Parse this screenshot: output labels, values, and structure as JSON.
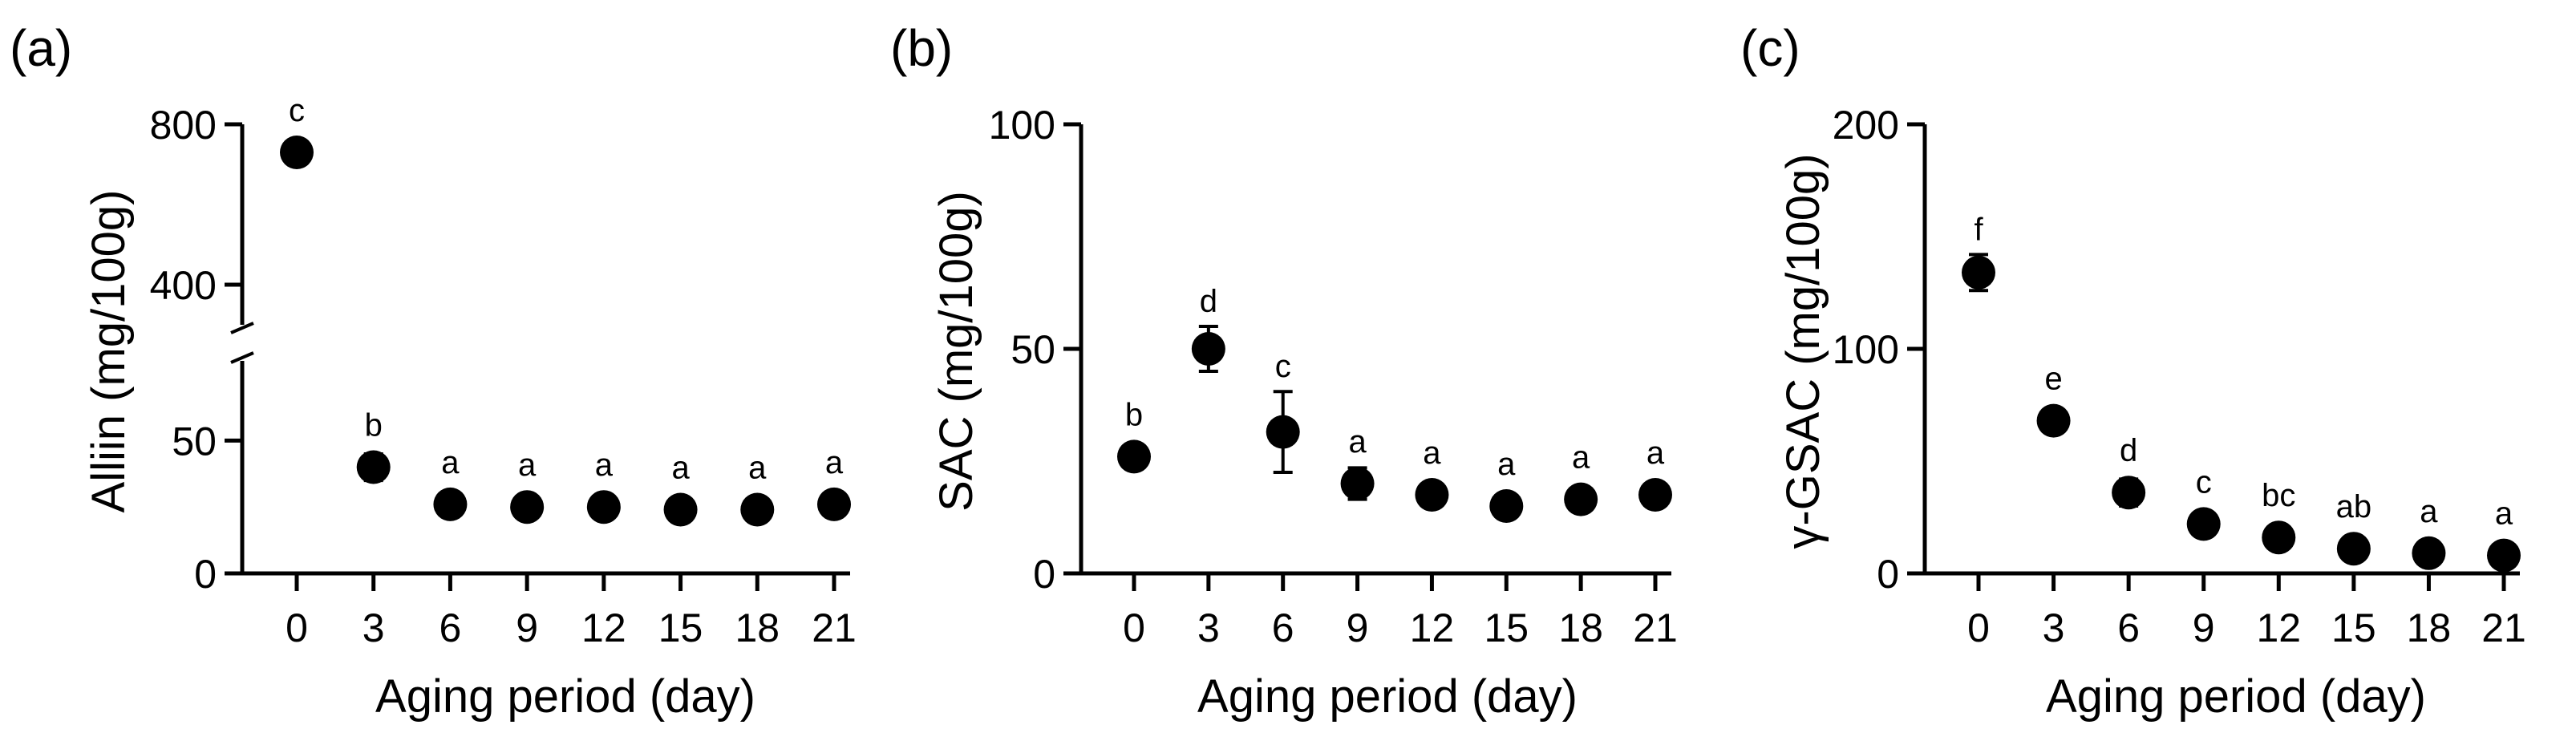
{
  "chart_data": [
    {
      "type": "scatter",
      "panel_label": "(a)",
      "xlabel": "Aging period (day)",
      "ylabel": "Alliin (mg/100g)",
      "x": [
        0,
        3,
        6,
        9,
        12,
        15,
        18,
        21
      ],
      "xticks": [
        "0",
        "3",
        "6",
        "9",
        "12",
        "15",
        "18",
        "21"
      ],
      "series": [
        {
          "name": "Alliin",
          "values": [
            730,
            40,
            26,
            25,
            25,
            24,
            24,
            26
          ],
          "errors": [
            15,
            5,
            2,
            2,
            2,
            2,
            2,
            2
          ],
          "letters": [
            "c",
            "b",
            "a",
            "a",
            "a",
            "a",
            "a",
            "a"
          ]
        }
      ],
      "axis_break": {
        "lower_range": [
          0,
          80
        ],
        "upper_range": [
          300,
          800
        ]
      },
      "yticks": [
        "0",
        "50",
        "400",
        "800"
      ],
      "ytick_values": [
        0,
        50,
        400,
        800
      ]
    },
    {
      "type": "scatter",
      "panel_label": "(b)",
      "xlabel": "Aging period (day)",
      "ylabel": "SAC (mg/100g)",
      "x": [
        0,
        3,
        6,
        9,
        12,
        15,
        18,
        21
      ],
      "xticks": [
        "0",
        "3",
        "6",
        "9",
        "12",
        "15",
        "18",
        "21"
      ],
      "ylim": [
        0,
        100
      ],
      "yticks": [
        "0",
        "50",
        "100"
      ],
      "ytick_values": [
        0,
        50,
        100
      ],
      "series": [
        {
          "name": "SAC",
          "values": [
            26,
            50,
            31.5,
            20,
            17.5,
            15,
            16.5,
            17.5
          ],
          "errors": [
            1.5,
            5,
            9,
            3.5,
            1.5,
            1,
            1,
            1
          ],
          "letters": [
            "b",
            "d",
            "c",
            "a",
            "a",
            "a",
            "a",
            "a"
          ]
        }
      ]
    },
    {
      "type": "scatter",
      "panel_label": "(c)",
      "xlabel": "Aging period (day)",
      "ylabel": "γ-GSAC (mg/100g)",
      "x": [
        0,
        3,
        6,
        9,
        12,
        15,
        18,
        21
      ],
      "xticks": [
        "0",
        "3",
        "6",
        "9",
        "12",
        "15",
        "18",
        "21"
      ],
      "ylim": [
        0,
        200
      ],
      "yticks": [
        "0",
        "100",
        "200"
      ],
      "ytick_values": [
        0,
        100,
        200
      ],
      "series": [
        {
          "name": "γ-GSAC",
          "values": [
            134,
            68,
            36,
            22,
            16,
            11,
            9,
            8
          ],
          "errors": [
            8,
            5,
            6,
            3,
            2,
            2,
            1.5,
            1.5
          ],
          "letters": [
            "f",
            "e",
            "d",
            "c",
            "bc",
            "ab",
            "a",
            "a"
          ]
        }
      ]
    }
  ]
}
